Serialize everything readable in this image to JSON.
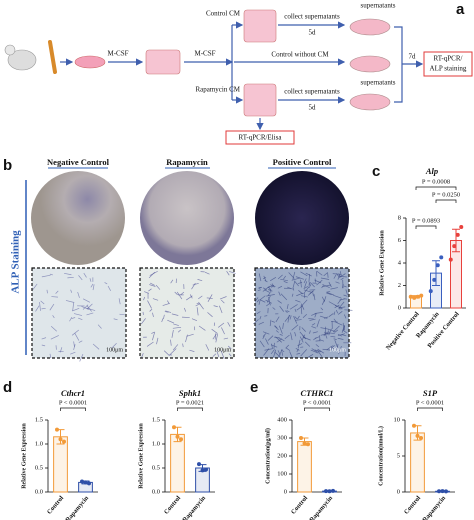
{
  "panels": {
    "labels": [
      "a",
      "b",
      "c",
      "d",
      "e"
    ]
  },
  "diagram": {
    "mcsf_1": "M-CSF",
    "mcsf_2": "M-CSF",
    "control_cm": "Control CM",
    "rapamycin_cm": "Rapamycin CM",
    "collect_1": "collect supernatants",
    "days_1": "5d",
    "control_without_cm": "Control without CM",
    "collect_2": "collect supernatants",
    "days_2": "5d",
    "supernatants_1": "supernatants",
    "supernatants_2": "supernatants",
    "days_3": "7d",
    "assay_1": [
      "RT-qPCR/",
      "ALP staining"
    ],
    "assay_2": "RT-qPCR/Elisa"
  },
  "staining": {
    "side_label": "ALP Staining",
    "groups": [
      "Negative Control",
      "Rapamycin",
      "Positive Control"
    ],
    "scale_bars": [
      "100μm",
      "100μm",
      "100μm"
    ]
  },
  "chart_data": [
    {
      "type": "bar",
      "title": "Alp",
      "ylabel": "Relative Gene Expression",
      "categories": [
        "Negative Control",
        "Rapamycin",
        "Positive Control"
      ],
      "values": [
        1,
        3.1,
        6
      ],
      "errors": [
        0.1,
        1.1,
        1.0
      ],
      "points": [
        [
          1,
          0.9,
          1,
          1.1
        ],
        [
          1.5,
          2.5,
          3.8,
          4.5
        ],
        [
          4.3,
          5.5,
          6.5,
          7.2
        ]
      ],
      "colors": [
        "#f39a3c",
        "#3a5fbf",
        "#e8413c"
      ],
      "ylim": [
        0,
        8
      ],
      "yticks": [
        0,
        2,
        4,
        6,
        8
      ],
      "annotations": [
        "P = 0.0008",
        "P = 0.0250",
        "P = 0.0893"
      ]
    },
    {
      "type": "bar",
      "title": "Cthcr1",
      "ylabel": "Relative Gene Expression",
      "categories": [
        "Control",
        "Rapamycin"
      ],
      "values": [
        1.15,
        0.2
      ],
      "errors": [
        0.15,
        0.03
      ],
      "points": [
        [
          1.3,
          1.1,
          1.05
        ],
        [
          0.22,
          0.2,
          0.18
        ]
      ],
      "colors": [
        "#f29a38",
        "#2e4fa8"
      ],
      "ylim": [
        0,
        1.5
      ],
      "yticks": [
        {
          "value": 0,
          "label": "0.0"
        },
        0.5,
        {
          "value": 1,
          "label": "1.0"
        },
        1.5
      ],
      "annotations": [
        "P < 0.0001"
      ]
    },
    {
      "type": "bar",
      "title": "Sphk1",
      "ylabel": "Relative Gene Expression",
      "categories": [
        "Control",
        "Rapamycin"
      ],
      "values": [
        1.2,
        0.5
      ],
      "errors": [
        0.15,
        0.07
      ],
      "points": [
        [
          1.35,
          1.15,
          1.1
        ],
        [
          0.58,
          0.45,
          0.47
        ]
      ],
      "colors": [
        "#f29a38",
        "#2e4fa8"
      ],
      "ylim": [
        0,
        1.5
      ],
      "yticks": [
        {
          "value": 0,
          "label": "0.0"
        },
        0.5,
        {
          "value": 1,
          "label": "1.0"
        },
        1.5
      ],
      "annotations": [
        "P = 0.0021"
      ]
    },
    {
      "type": "bar",
      "title": "CTHRC1",
      "ylabel": "Concentration(pg/ml)",
      "categories": [
        "Control",
        "Rapamycin"
      ],
      "values": [
        280,
        5
      ],
      "errors": [
        20,
        1
      ],
      "points": [
        [
          300,
          270,
          265
        ],
        [
          5,
          4,
          6
        ]
      ],
      "colors": [
        "#f29a38",
        "#2e4fa8"
      ],
      "ylim": [
        0,
        400
      ],
      "yticks": [
        0,
        100,
        200,
        300,
        400
      ],
      "annotations": [
        "P < 0.0001"
      ]
    },
    {
      "type": "bar",
      "title": "S1P",
      "ylabel": "Concentration(nmol/L)",
      "categories": [
        "Control",
        "Rapamycin"
      ],
      "values": [
        8.2,
        0.1
      ],
      "errors": [
        1,
        0.05
      ],
      "points": [
        [
          9.2,
          7.8,
          7.5
        ],
        [
          0.1,
          0.12,
          0.08
        ]
      ],
      "colors": [
        "#f29a38",
        "#2e4fa8"
      ],
      "ylim": [
        0,
        10
      ],
      "yticks": [
        0,
        5,
        10
      ],
      "annotations": [
        "P < 0.0001"
      ]
    }
  ]
}
